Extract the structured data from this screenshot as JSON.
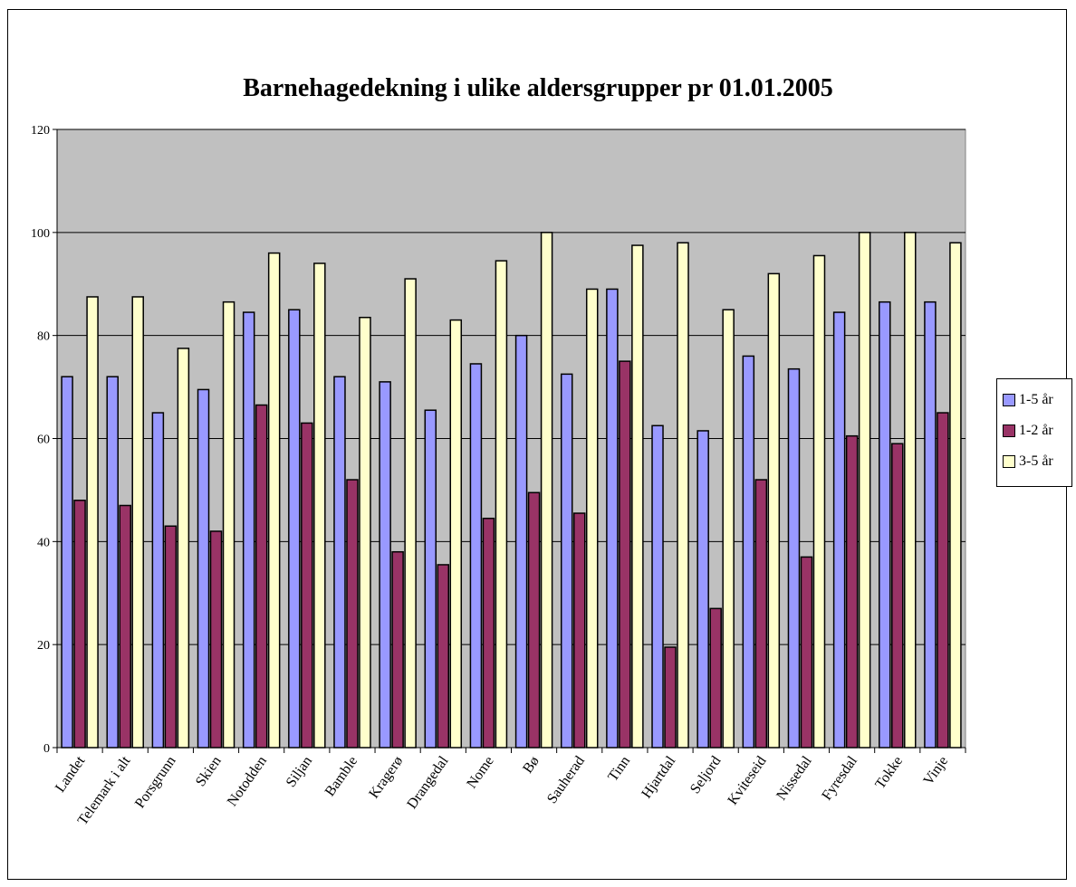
{
  "chart_data": {
    "type": "bar",
    "title": "Barnehagedekning i ulike aldersgrupper pr 01.01.2005",
    "xlabel": "",
    "ylabel": "",
    "ylim": [
      0,
      120
    ],
    "yticks": [
      0,
      20,
      40,
      60,
      80,
      100,
      120
    ],
    "grid": true,
    "legend_position": "right",
    "categories": [
      "Landet",
      "Telemark i alt",
      "Porsgrunn",
      "Skien",
      "Notodden",
      "Siljan",
      "Bamble",
      "Kragerø",
      "Drangedal",
      "Nome",
      "Bø",
      "Sauherad",
      "Tinn",
      "Hjartdal",
      "Seljord",
      "Kviteseid",
      "Nissedal",
      "Fyresdal",
      "Tokke",
      "Vinje"
    ],
    "series": [
      {
        "name": "1-5 år",
        "color": "#9999ff",
        "values": [
          72,
          72,
          65,
          69.5,
          84.5,
          85,
          72,
          71,
          65.5,
          74.5,
          80,
          72.5,
          89,
          62.5,
          61.5,
          76,
          73.5,
          84.5,
          86.5,
          86.5
        ]
      },
      {
        "name": "1-2 år",
        "color": "#993366",
        "values": [
          48,
          47,
          43,
          42,
          66.5,
          63,
          52,
          38,
          35.5,
          44.5,
          49.5,
          45.5,
          75,
          19.5,
          27,
          52,
          37,
          60.5,
          59,
          65
        ]
      },
      {
        "name": "3-5 år",
        "color": "#ffffcc",
        "values": [
          87.5,
          87.5,
          77.5,
          86.5,
          96,
          94,
          83.5,
          91,
          83,
          94.5,
          100,
          89,
          97.5,
          98,
          85,
          92,
          95.5,
          100,
          100,
          98
        ]
      }
    ],
    "plot_bg": "#c0c0c0"
  }
}
